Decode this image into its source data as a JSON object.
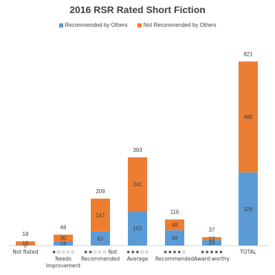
{
  "chart_data": {
    "type": "bar",
    "stacked": true,
    "title": "2016 RSR Rated Short Fiction",
    "legend_position": "top",
    "grid": false,
    "categories": [
      [
        "Not Rated"
      ],
      [
        "★☆☆☆☆",
        "Needs",
        "Improvement"
      ],
      [
        "★★☆☆☆ Not",
        "Recommended"
      ],
      [
        "★★★☆☆",
        "Average"
      ],
      [
        "★★★★☆",
        "Recommended"
      ],
      [
        "★★★★★",
        "Award-worthy"
      ],
      [
        "TOTAL"
      ]
    ],
    "series": [
      {
        "name": "Recommended by Others",
        "color": "#5b9bd5",
        "values": [
          2,
          18,
          62,
          152,
          68,
          24,
          326
        ]
      },
      {
        "name": "Not Recommended by Others",
        "color": "#ed7d31",
        "values": [
          16,
          30,
          147,
          241,
          48,
          13,
          495
        ]
      }
    ],
    "totals": [
      18,
      48,
      209,
      393,
      116,
      37,
      821
    ],
    "ylim": [
      0,
      850
    ]
  }
}
